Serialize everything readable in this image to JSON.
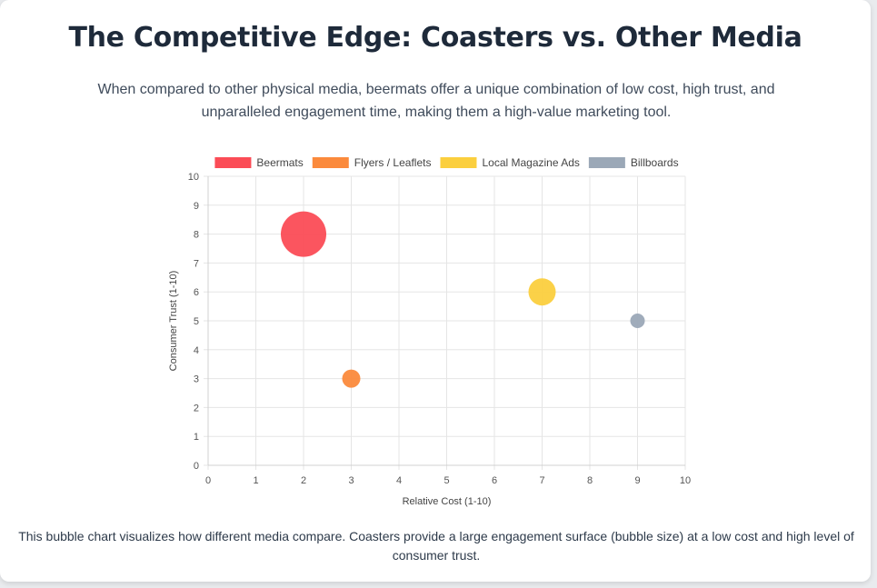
{
  "header": {
    "title": "The Competitive Edge: Coasters vs. Other Media",
    "subtitle": "When compared to other physical media, beermats offer a unique combination of low cost, high trust, and unparalleled engagement time, making them a high-value marketing tool."
  },
  "caption": "This bubble chart visualizes how different media compare. Coasters provide a large engagement surface (bubble size) at a low cost and high level of consumer trust.",
  "chart_data": {
    "type": "scatter",
    "variant": "bubble",
    "xlabel": "Relative Cost (1-10)",
    "ylabel": "Consumer Trust (1-10)",
    "xlim": [
      0,
      10
    ],
    "ylim": [
      0,
      10
    ],
    "x_ticks": [
      "0",
      "1",
      "2",
      "3",
      "4",
      "5",
      "6",
      "7",
      "8",
      "9",
      "10"
    ],
    "y_ticks": [
      "0",
      "1",
      "2",
      "3",
      "4",
      "5",
      "6",
      "7",
      "8",
      "9",
      "10"
    ],
    "grid": true,
    "legend": "top",
    "series": [
      {
        "name": "Beermats",
        "x": 2,
        "y": 8,
        "size": 25,
        "color": "#fb4c56"
      },
      {
        "name": "Flyers / Leaflets",
        "x": 3,
        "y": 3,
        "size": 10,
        "color": "#fb8a3c"
      },
      {
        "name": "Local Magazine Ads",
        "x": 7,
        "y": 6,
        "size": 15,
        "color": "#fbcf3e"
      },
      {
        "name": "Billboards",
        "x": 9,
        "y": 5,
        "size": 8,
        "color": "#9ba8b7"
      }
    ]
  }
}
